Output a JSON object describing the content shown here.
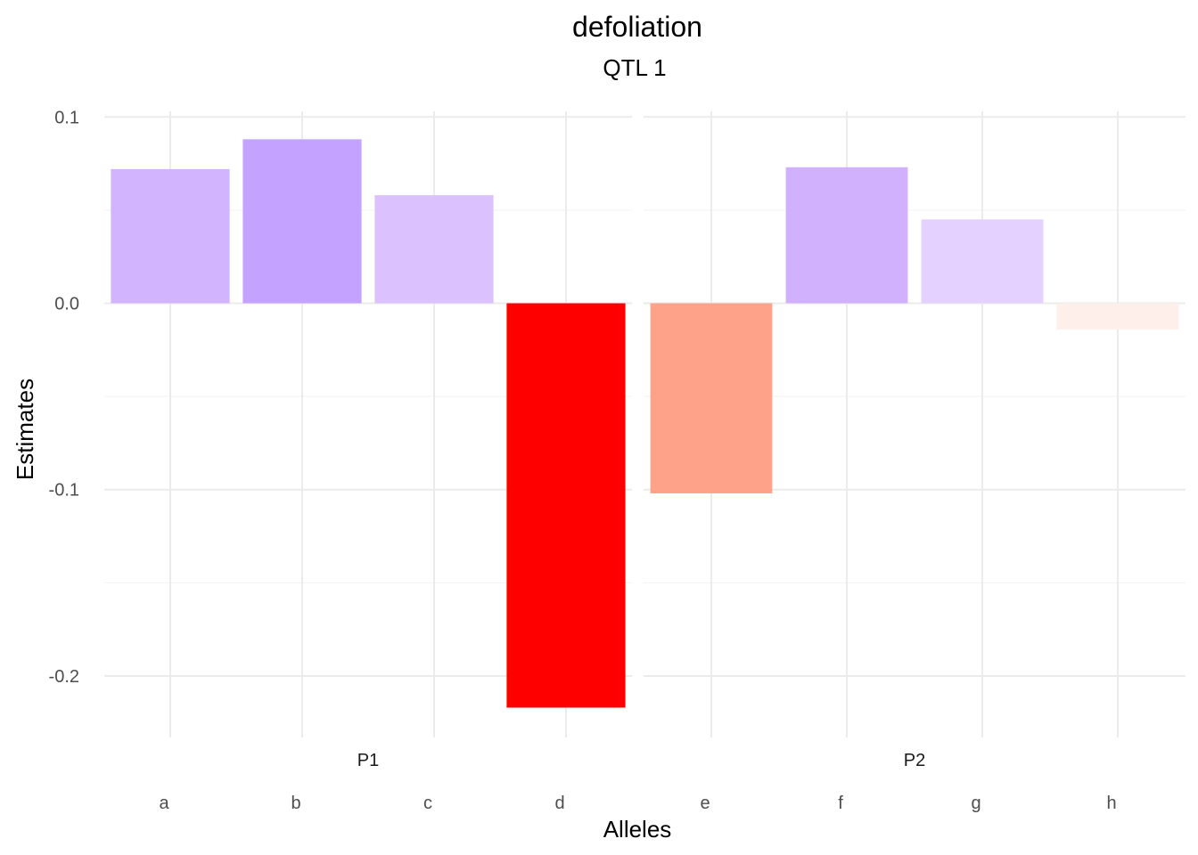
{
  "chart_data": {
    "type": "bar",
    "title": "defoliation",
    "subtitle": "QTL 1",
    "xlabel": "Alleles",
    "ylabel": "Estimates",
    "ylim": [
      -0.233,
      0.103
    ],
    "yticks": [
      0.1,
      0.0,
      -0.1,
      -0.2
    ],
    "ytick_labels": [
      "0.1",
      "0.0",
      "-0.1",
      "-0.2"
    ],
    "grid": true,
    "legend": "none",
    "color_scale": {
      "low": "#ff0000",
      "mid": "#ffffff",
      "high": "#9966ff"
    },
    "panels": [
      {
        "name": "P1",
        "categories": [
          "a",
          "b",
          "c",
          "d"
        ],
        "values": [
          0.072,
          0.088,
          0.058,
          -0.217
        ],
        "colors": [
          "#d2b3fd",
          "#c4a2ff",
          "#dbc2fe",
          "#ff0000"
        ]
      },
      {
        "name": "P2",
        "categories": [
          "e",
          "f",
          "g",
          "h"
        ],
        "values": [
          -0.102,
          0.073,
          0.045,
          -0.014
        ],
        "colors": [
          "#fea289",
          "#d1b1fe",
          "#e5d1ff",
          "#ffefea"
        ]
      }
    ]
  }
}
